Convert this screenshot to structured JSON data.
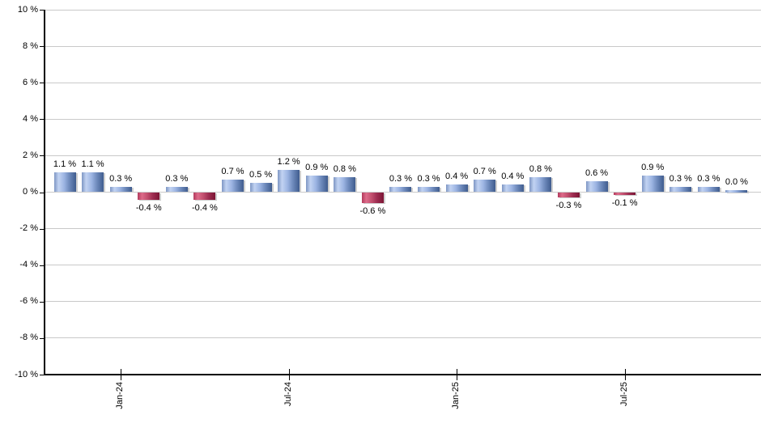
{
  "chart_data": {
    "type": "bar",
    "title": "",
    "xlabel": "",
    "ylabel": "",
    "ylim": [
      -10,
      10
    ],
    "grid": true,
    "legend": false,
    "values": [
      1.1,
      1.1,
      0.3,
      -0.4,
      0.3,
      -0.4,
      0.7,
      0.5,
      1.2,
      0.9,
      0.8,
      -0.6,
      0.3,
      0.3,
      0.4,
      0.7,
      0.4,
      0.8,
      -0.3,
      0.6,
      -0.1,
      0.9,
      0.3,
      0.3,
      0.0
    ],
    "bar_labels": [
      "1.1 %",
      "1.1 %",
      "0.3 %",
      "-0.4 %",
      "0.3 %",
      "-0.4 %",
      "0.7 %",
      "0.5 %",
      "1.2 %",
      "0.9 %",
      "0.8 %",
      "-0.6 %",
      "0.3 %",
      "0.3 %",
      "0.4 %",
      "0.7 %",
      "0.4 %",
      "0.8 %",
      "-0.3 %",
      "0.6 %",
      "-0.1 %",
      "0.9 %",
      "0.3 %",
      "0.3 %",
      "0.0 %"
    ],
    "x_tick_labels": [
      {
        "label": "Jan-24",
        "bar_index": 2
      },
      {
        "label": "Jul-24",
        "bar_index": 8
      },
      {
        "label": "Jan-25",
        "bar_index": 14
      },
      {
        "label": "Jul-25",
        "bar_index": 20
      }
    ],
    "y_tick_labels": [
      {
        "label": "10 %",
        "value": 10
      },
      {
        "label": "8 %",
        "value": 8
      },
      {
        "label": "6 %",
        "value": 6
      },
      {
        "label": "4 %",
        "value": 4
      },
      {
        "label": "2 %",
        "value": 2
      },
      {
        "label": "0 %",
        "value": 0
      },
      {
        "label": "-2 %",
        "value": -2
      },
      {
        "label": "-4 %",
        "value": -4
      },
      {
        "label": "-6 %",
        "value": -6
      },
      {
        "label": "-8 %",
        "value": -8
      },
      {
        "label": "-10 %",
        "value": -10
      }
    ],
    "colors": {
      "positive_bar_gradient": [
        "#7e96c4",
        "#c2d3f2",
        "#9db5e3",
        "#6d89bb",
        "#3f5c8e"
      ],
      "negative_bar_gradient": [
        "#b23a5c",
        "#dd6c8a",
        "#c14f6e",
        "#9c2c50",
        "#7c1534"
      ],
      "gridline": "#c9c9c9",
      "axis_line": "#000000",
      "text": "#000000",
      "bar_shadow": "#cfcfcf",
      "background": "#ffffff"
    }
  }
}
